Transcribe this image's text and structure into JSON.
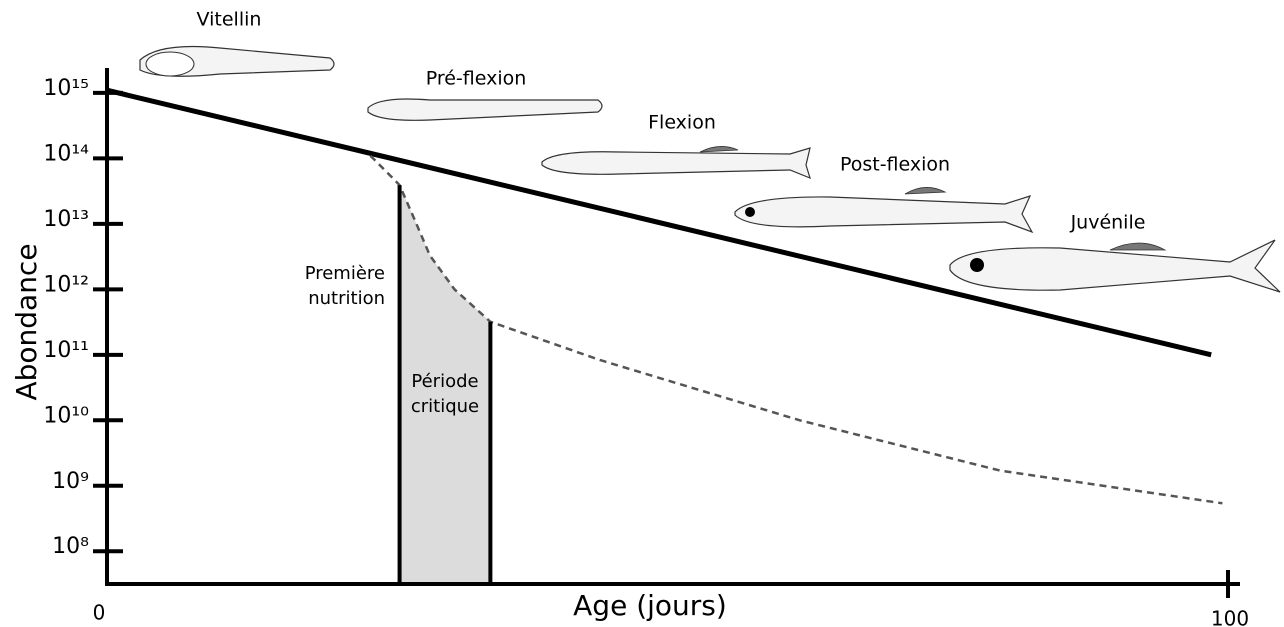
{
  "chart_data": {
    "type": "line",
    "xlabel": "Age (jours)",
    "ylabel": "Abondance",
    "xlim": [
      0,
      100
    ],
    "xticks": [
      0,
      100
    ],
    "ylim": [
      31600000,
      2240000000000000
    ],
    "log_y": true,
    "yticks": [
      {
        "value": 100000000,
        "label": "10⁸"
      },
      {
        "value": 1000000000,
        "label": "10⁹"
      },
      {
        "value": 10000000000,
        "label": "10¹⁰"
      },
      {
        "value": 100000000000,
        "label": "10¹¹"
      },
      {
        "value": 1000000000000,
        "label": "10¹²"
      },
      {
        "value": 10000000000000,
        "label": "10¹³"
      },
      {
        "value": 100000000000000,
        "label": "10¹⁴"
      },
      {
        "value": 1000000000000000,
        "label": "10¹⁵"
      }
    ],
    "series": [
      {
        "color": "#000000",
        "style": "solid",
        "x": [
          0,
          98.5
        ],
        "values": [
          1100000000000000,
          100000000000
        ]
      },
      {
        "color": "#555555",
        "style": "dashed",
        "x": [
          23.5,
          25.7,
          26.1,
          27.5,
          28.8,
          31,
          34.2,
          44,
          61.8,
          79.7,
          99.5
        ],
        "values": [
          110000000000000,
          46000000000000,
          39000000000000,
          11000000000000,
          3300000000000,
          1000000000000,
          320000000000,
          83000000000,
          10000000000,
          1700000000,
          540000000
        ]
      }
    ],
    "critical_period": [
      26.1,
      34.2
    ],
    "annotations": {
      "first_feeding": [
        "Première",
        "nutrition"
      ],
      "critical_period": [
        "Période",
        "critique"
      ]
    },
    "stages": [
      "Vitellin",
      "Pré-flexion",
      "Flexion",
      "Post-flexion",
      "Juvénile"
    ]
  }
}
